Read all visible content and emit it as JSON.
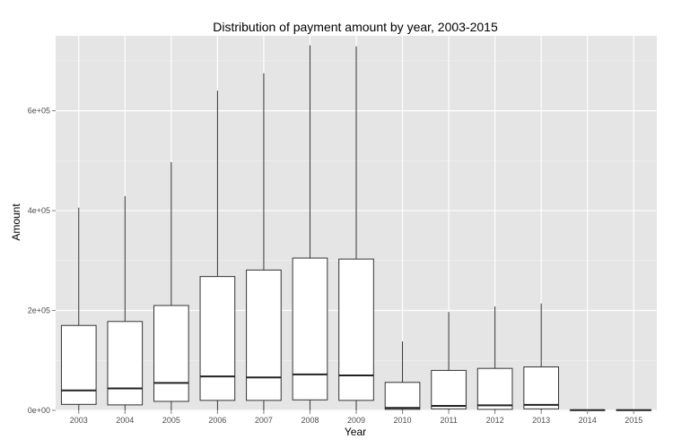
{
  "chart_data": {
    "type": "boxplot",
    "title": "Distribution of payment amount by year, 2003-2015",
    "xlabel": "Year",
    "ylabel": "Amount",
    "categories": [
      "2003",
      "2004",
      "2005",
      "2006",
      "2007",
      "2008",
      "2009",
      "2010",
      "2011",
      "2012",
      "2013",
      "2014",
      "2015"
    ],
    "boxes": [
      {
        "year": "2003",
        "min": 0,
        "q1": 12000,
        "median": 40000,
        "q3": 170000,
        "max": 406000
      },
      {
        "year": "2004",
        "min": 0,
        "q1": 11000,
        "median": 44000,
        "q3": 178000,
        "max": 429000
      },
      {
        "year": "2005",
        "min": 0,
        "q1": 18000,
        "median": 55000,
        "q3": 210000,
        "max": 497000
      },
      {
        "year": "2006",
        "min": 0,
        "q1": 20000,
        "median": 68000,
        "q3": 268000,
        "max": 640000
      },
      {
        "year": "2007",
        "min": 0,
        "q1": 20000,
        "median": 66000,
        "q3": 281000,
        "max": 675000
      },
      {
        "year": "2008",
        "min": 0,
        "q1": 21000,
        "median": 72000,
        "q3": 305000,
        "max": 731000
      },
      {
        "year": "2009",
        "min": 0,
        "q1": 20000,
        "median": 70000,
        "q3": 303000,
        "max": 729000
      },
      {
        "year": "2010",
        "min": 0,
        "q1": 2000,
        "median": 5000,
        "q3": 56000,
        "max": 138000
      },
      {
        "year": "2011",
        "min": 0,
        "q1": 3000,
        "median": 9000,
        "q3": 80000,
        "max": 197000
      },
      {
        "year": "2012",
        "min": 0,
        "q1": 2000,
        "median": 10000,
        "q3": 84000,
        "max": 208000
      },
      {
        "year": "2013",
        "min": 0,
        "q1": 3000,
        "median": 11000,
        "q3": 87000,
        "max": 214000
      },
      {
        "year": "2014",
        "min": 0,
        "q1": 0,
        "median": 500,
        "q3": 1000,
        "max": 1000
      },
      {
        "year": "2015",
        "min": 0,
        "q1": 0,
        "median": 500,
        "q3": 1000,
        "max": 1000
      }
    ],
    "y_ticks": [
      {
        "value": 0,
        "label": "0e+00"
      },
      {
        "value": 200000,
        "label": "2e+05"
      },
      {
        "value": 400000,
        "label": "4e+05"
      },
      {
        "value": 600000,
        "label": "6e+05"
      }
    ],
    "ylim": [
      0,
      750000
    ],
    "grid": true,
    "panel_background": "#e5e5e5",
    "grid_color": "#ffffff",
    "box_fill": "#ffffff",
    "line_color": "#333333"
  }
}
